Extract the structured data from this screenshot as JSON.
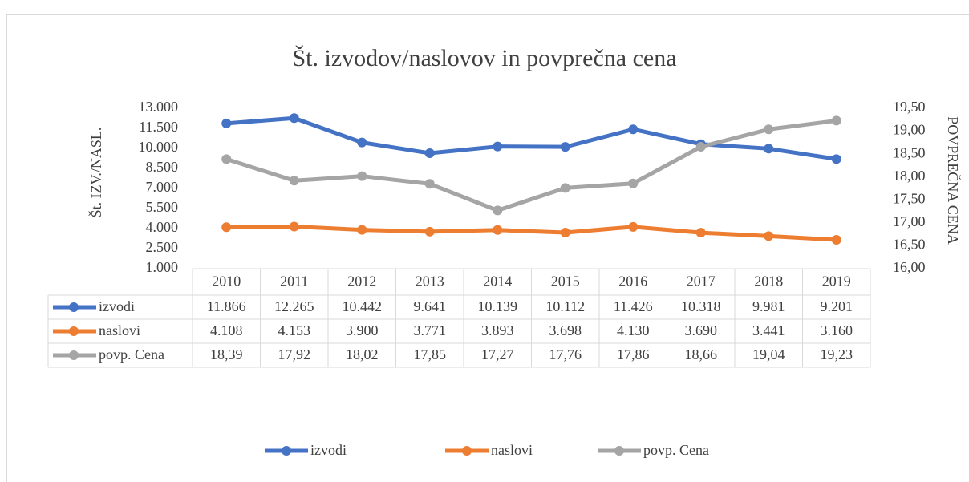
{
  "chart_data": {
    "type": "line",
    "title": "Št. izvodov/naslovov in povprečna cena",
    "y_label": "Št. IZV./NASL.",
    "y2_label": "POVPREČNA CENA",
    "categories": [
      "2010",
      "2011",
      "2012",
      "2013",
      "2014",
      "2015",
      "2016",
      "2017",
      "2018",
      "2019"
    ],
    "series": [
      {
        "name": "izvodi",
        "color": "#4472c4",
        "values": [
          11866,
          12265,
          10442,
          9641,
          10139,
          10112,
          11426,
          10318,
          9981,
          9201
        ],
        "value_labels": [
          "11.866",
          "12.265",
          "10.442",
          "9.641",
          "10.139",
          "10.112",
          "11.426",
          "10.318",
          "9.981",
          "9.201"
        ]
      },
      {
        "name": "naslovi",
        "color": "#ed7d31",
        "values": [
          4108,
          4153,
          3900,
          3771,
          3893,
          3698,
          4130,
          3690,
          3441,
          3160
        ],
        "value_labels": [
          "4.108",
          "4.153",
          "3.900",
          "3.771",
          "3.893",
          "3.698",
          "4.130",
          "3.690",
          "3.441",
          "3.160"
        ]
      },
      {
        "name": "povp. Cena",
        "color": "#a5a5a5",
        "axis": "y2",
        "values": [
          18.39,
          17.92,
          18.02,
          17.85,
          17.27,
          17.76,
          17.86,
          18.66,
          19.04,
          19.23
        ],
        "value_labels": [
          "18,39",
          "17,92",
          "18,02",
          "17,85",
          "17,27",
          "17,76",
          "17,86",
          "18,66",
          "19,04",
          "19,23"
        ]
      }
    ],
    "ylim": [
      1000,
      13000
    ],
    "yticks": [
      {
        "value": 1000,
        "label": "1.000"
      },
      {
        "value": 2500,
        "label": "2.500"
      },
      {
        "value": 4000,
        "label": "4.000"
      },
      {
        "value": 5500,
        "label": "5.500"
      },
      {
        "value": 7000,
        "label": "7.000"
      },
      {
        "value": 8500,
        "label": "8.500"
      },
      {
        "value": 10000,
        "label": "10.000"
      },
      {
        "value": 11500,
        "label": "11.500"
      },
      {
        "value": 13000,
        "label": "13.000"
      }
    ],
    "y2lim": [
      16,
      19.5
    ],
    "y2ticks": [
      {
        "value": 16,
        "label": "16,00"
      },
      {
        "value": 16.5,
        "label": "16,50"
      },
      {
        "value": 17,
        "label": "17,00"
      },
      {
        "value": 17.5,
        "label": "17,50"
      },
      {
        "value": 18,
        "label": "18,00"
      },
      {
        "value": 18.5,
        "label": "18,50"
      },
      {
        "value": 19,
        "label": "19,00"
      },
      {
        "value": 19.5,
        "label": "19,50"
      }
    ],
    "grid": false,
    "legend": "bottom"
  }
}
